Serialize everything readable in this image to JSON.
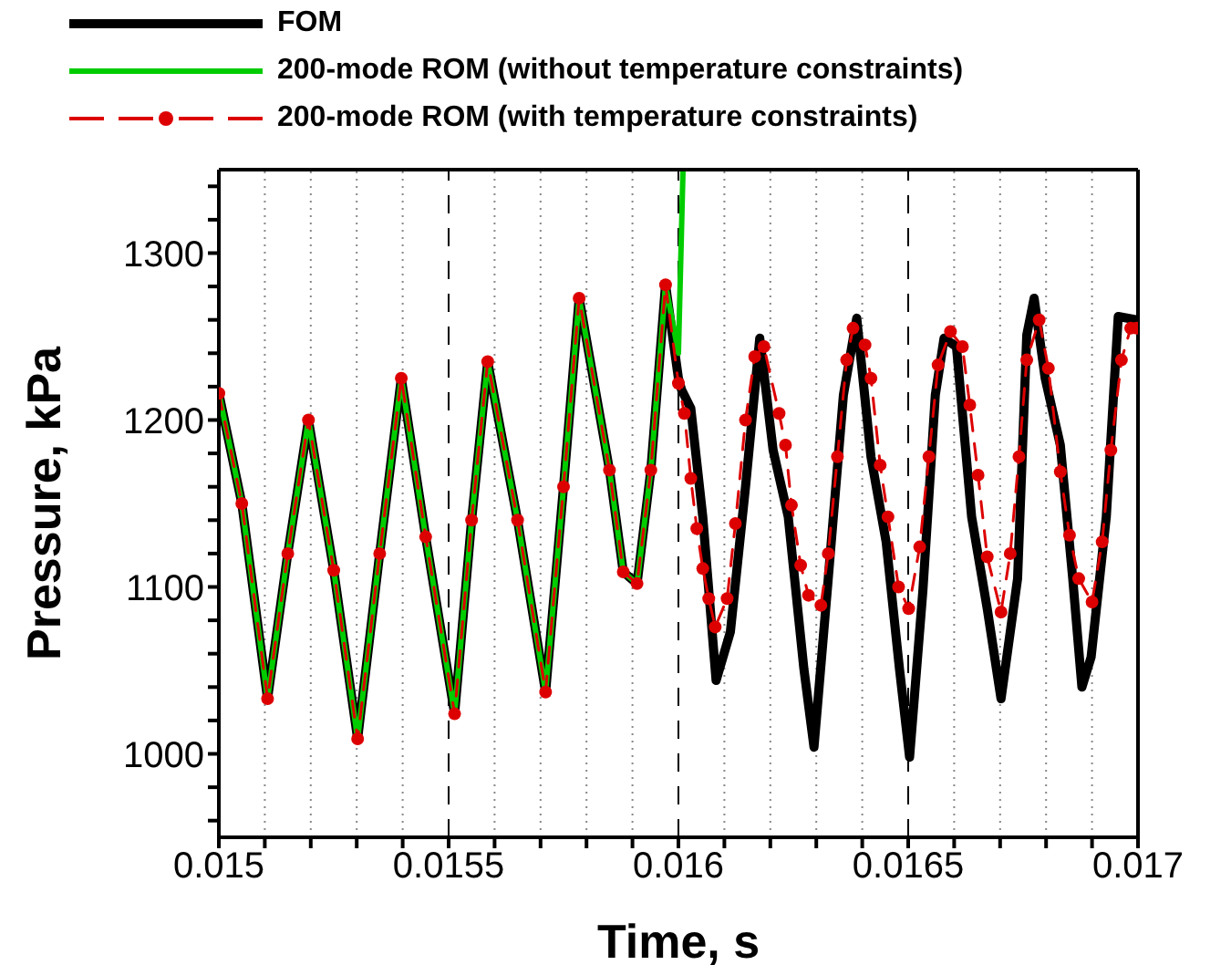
{
  "chart_data": {
    "type": "line",
    "xlabel": "Time, s",
    "ylabel": "Pressure, kPa",
    "legend": "top left",
    "grid": "x",
    "xlim": [
      0.015,
      0.017
    ],
    "ylim": [
      950,
      1350
    ],
    "xticks": [
      0.015,
      {
        "value": 0.0151,
        "label": null
      },
      {
        "value": 0.0152,
        "label": null
      },
      {
        "value": 0.0153,
        "label": null
      },
      {
        "value": 0.0154,
        "label": null
      },
      0.0155,
      {
        "value": 0.0156,
        "label": null
      },
      {
        "value": 0.0157,
        "label": null
      },
      {
        "value": 0.0158,
        "label": null
      },
      {
        "value": 0.0159,
        "label": null
      },
      0.016,
      {
        "value": 0.0161,
        "label": null
      },
      {
        "value": 0.0162,
        "label": null
      },
      {
        "value": 0.0163,
        "label": null
      },
      {
        "value": 0.0164,
        "label": null
      },
      0.0165,
      {
        "value": 0.0166,
        "label": null
      },
      {
        "value": 0.0167,
        "label": null
      },
      {
        "value": 0.0168,
        "label": null
      },
      {
        "value": 0.0169,
        "label": null
      },
      0.017
    ],
    "yticks": [
      {
        "value": 960,
        "label": null
      },
      {
        "value": 980,
        "label": null
      },
      1000,
      {
        "value": 1020,
        "label": null
      },
      {
        "value": 1040,
        "label": null
      },
      {
        "value": 1060,
        "label": null
      },
      {
        "value": 1080,
        "label": null
      },
      1100,
      {
        "value": 1120,
        "label": null
      },
      {
        "value": 1140,
        "label": null
      },
      {
        "value": 1160,
        "label": null
      },
      {
        "value": 1180,
        "label": null
      },
      1200,
      {
        "value": 1220,
        "label": null
      },
      {
        "value": 1240,
        "label": null
      },
      {
        "value": 1260,
        "label": null
      },
      {
        "value": 1280,
        "label": null
      },
      1300,
      {
        "value": 1320,
        "label": null
      },
      {
        "value": 1340,
        "label": null
      }
    ],
    "series": [
      {
        "name": "FOM",
        "color": "#000000",
        "line_style": "solid",
        "marker": "none",
        "x": [
          0.015,
          0.01505,
          0.015106,
          0.01515,
          0.015195,
          0.01525,
          0.015302,
          0.01535,
          0.015397,
          0.01545,
          0.015513,
          0.01555,
          0.015585,
          0.01565,
          0.015711,
          0.01575,
          0.015784,
          0.01585,
          0.01588,
          0.01591,
          0.01594,
          0.015972,
          0.016,
          0.016007,
          0.016027,
          0.016053,
          0.016082,
          0.016113,
          0.016146,
          0.016177,
          0.016206,
          0.016239,
          0.016273,
          0.016295,
          0.016326,
          0.016359,
          0.016388,
          0.016419,
          0.016452,
          0.016481,
          0.016503,
          0.016532,
          0.016559,
          0.016578,
          0.016605,
          0.016638,
          0.016672,
          0.016702,
          0.016738,
          0.016758,
          0.016774,
          0.016798,
          0.016831,
          0.016858,
          0.016878,
          0.016898,
          0.016931,
          0.016957,
          0.016997
        ],
        "values": [
          1216,
          1150,
          1033,
          1120,
          1200,
          1110,
          1009,
          1120,
          1225,
          1130,
          1024,
          1140,
          1235,
          1140,
          1037,
          1160,
          1273,
          1170,
          1109,
          1102,
          1170,
          1281,
          1225,
          1218,
          1207,
          1142,
          1044,
          1073,
          1160,
          1249,
          1182,
          1142,
          1051,
          1004,
          1105,
          1215,
          1261,
          1178,
          1127,
          1051,
          998,
          1098,
          1215,
          1249,
          1244,
          1142,
          1087,
          1033,
          1105,
          1251,
          1273,
          1225,
          1185,
          1105,
          1040,
          1058,
          1142,
          1262,
          1260
        ]
      },
      {
        "name": "200-mode ROM (without temperature constraints)",
        "color": "#00cc00",
        "line_style": "solid",
        "marker": "none",
        "x": [
          0.015,
          0.01505,
          0.015106,
          0.01515,
          0.015195,
          0.01525,
          0.015302,
          0.01535,
          0.015397,
          0.01545,
          0.015513,
          0.01555,
          0.015585,
          0.01565,
          0.015711,
          0.01575,
          0.015784,
          0.01585,
          0.01588,
          0.01591,
          0.01594,
          0.015972,
          0.016,
          0.01601
        ],
        "values": [
          1216,
          1150,
          1033,
          1120,
          1200,
          1110,
          1009,
          1120,
          1225,
          1130,
          1024,
          1140,
          1235,
          1140,
          1037,
          1160,
          1273,
          1170,
          1109,
          1102,
          1170,
          1281,
          1240,
          1350
        ]
      },
      {
        "name": "200-mode ROM (with temperature constraints)",
        "color": "#dd0000",
        "line_style": "dashed",
        "marker": "circle",
        "x": [
          0.015,
          0.01505,
          0.015106,
          0.01515,
          0.015195,
          0.01525,
          0.015302,
          0.01535,
          0.015397,
          0.01545,
          0.015513,
          0.01555,
          0.015585,
          0.01565,
          0.015711,
          0.01575,
          0.015784,
          0.01585,
          0.01588,
          0.01591,
          0.01594,
          0.015972,
          0.016,
          0.016013,
          0.016027,
          0.01604,
          0.016053,
          0.016066,
          0.01608,
          0.016106,
          0.016124,
          0.016146,
          0.016166,
          0.016186,
          0.016219,
          0.016233,
          0.016246,
          0.016266,
          0.016283,
          0.01631,
          0.016326,
          0.016346,
          0.016366,
          0.01638,
          0.016406,
          0.016419,
          0.016439,
          0.016456,
          0.016479,
          0.016501,
          0.016525,
          0.016545,
          0.016565,
          0.016592,
          0.016618,
          0.016634,
          0.016652,
          0.016672,
          0.016702,
          0.016722,
          0.016741,
          0.016758,
          0.016785,
          0.016805,
          0.016831,
          0.016851,
          0.016871,
          0.0169,
          0.016922,
          0.016941,
          0.016964,
          0.016984,
          0.016997
        ],
        "values": [
          1216,
          1150,
          1033,
          1120,
          1200,
          1110,
          1009,
          1120,
          1225,
          1130,
          1024,
          1140,
          1235,
          1140,
          1037,
          1160,
          1273,
          1170,
          1109,
          1102,
          1170,
          1281,
          1222,
          1204,
          1165,
          1135,
          1111,
          1093,
          1076,
          1093,
          1138,
          1200,
          1238,
          1244,
          1204,
          1185,
          1149,
          1113,
          1095,
          1089,
          1120,
          1178,
          1236,
          1255,
          1245,
          1225,
          1173,
          1142,
          1100,
          1087,
          1124,
          1178,
          1233,
          1253,
          1244,
          1209,
          1167,
          1118,
          1085,
          1120,
          1178,
          1236,
          1260,
          1231,
          1169,
          1131,
          1105,
          1091,
          1127,
          1182,
          1236,
          1255,
          1255
        ]
      }
    ]
  }
}
